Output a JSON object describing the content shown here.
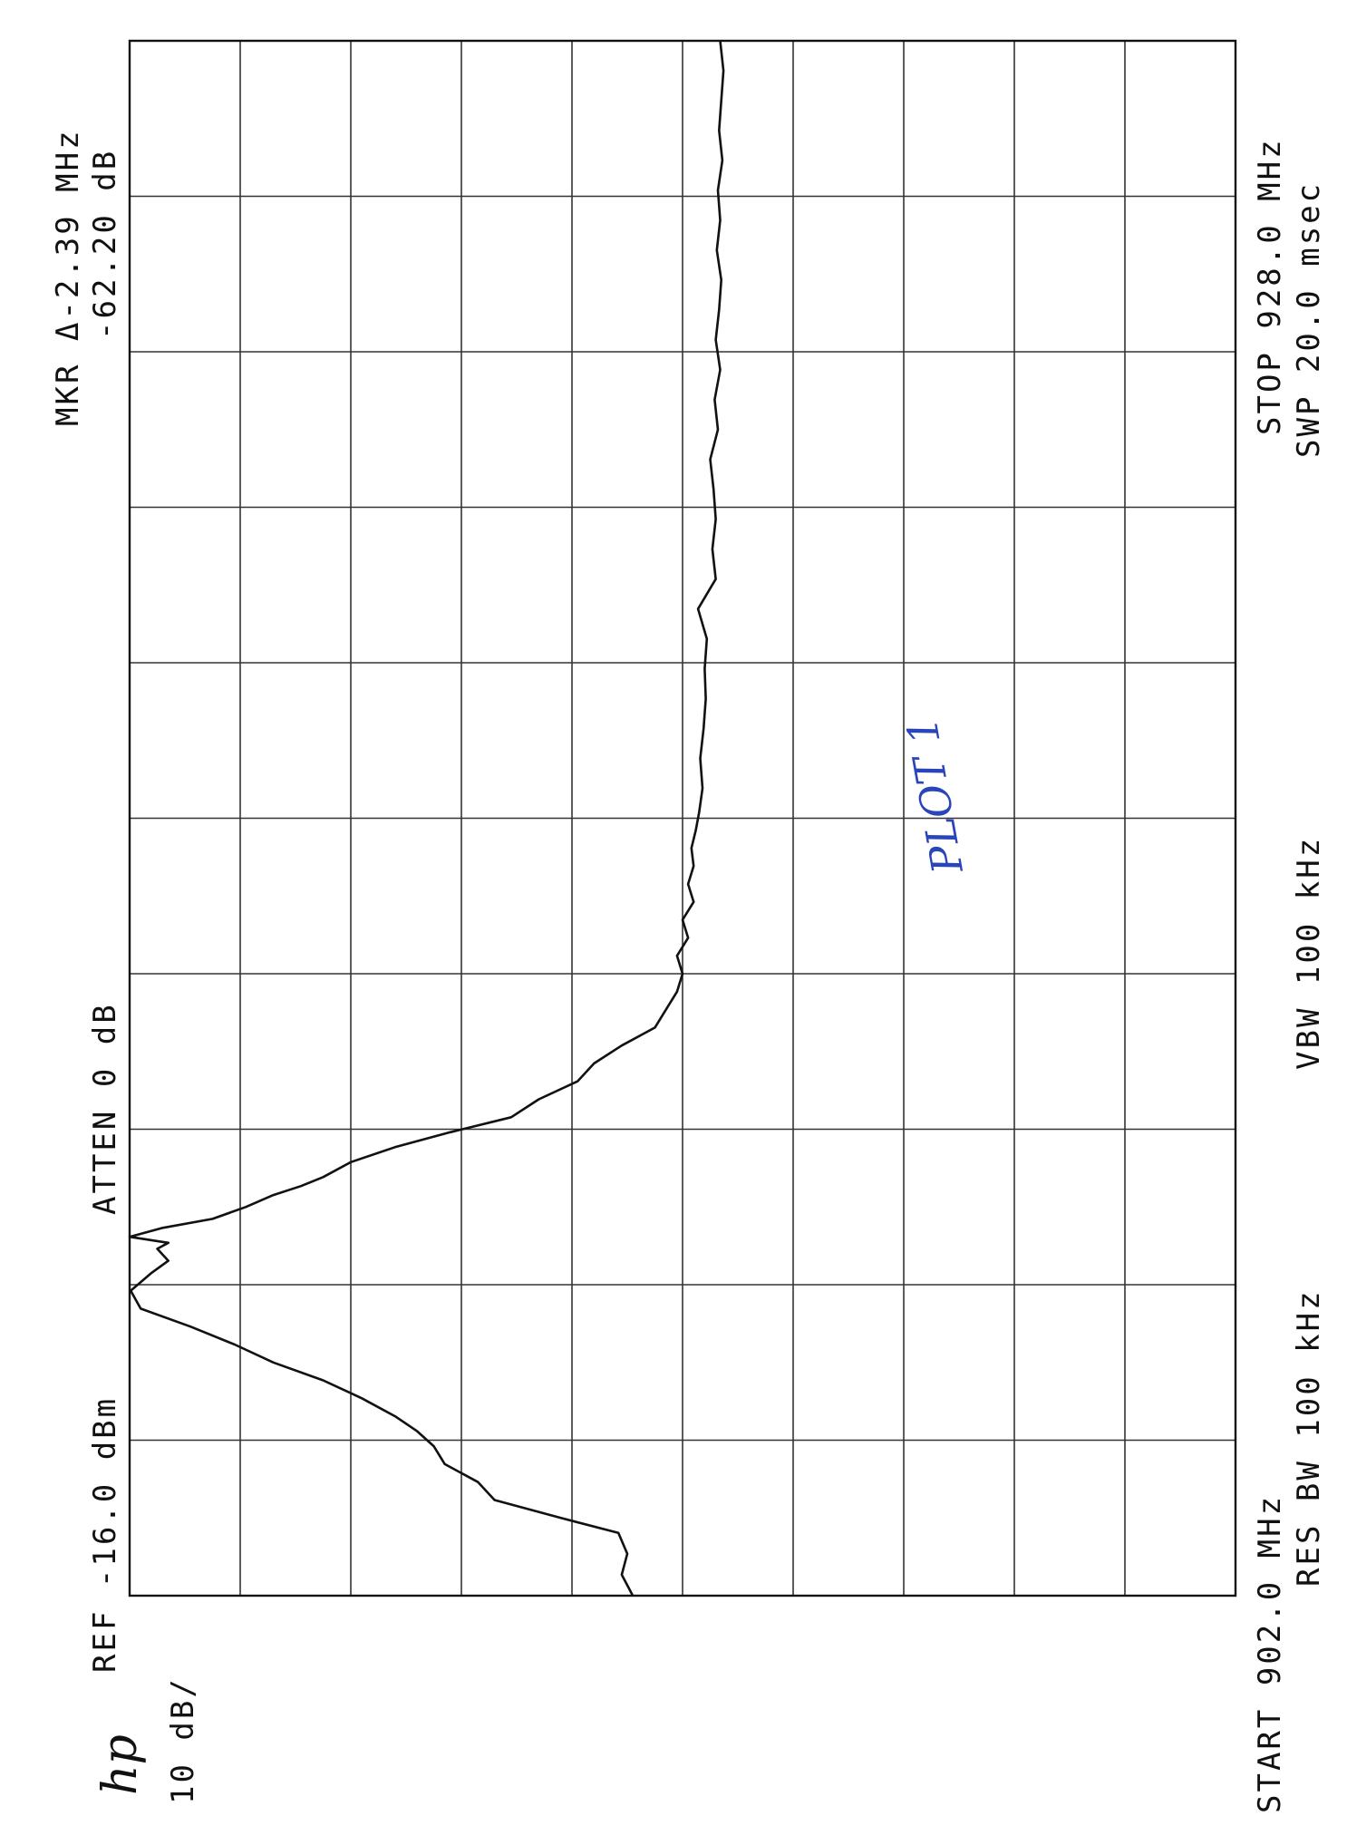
{
  "annotations": {
    "logo": "hp",
    "scale": "10 dB/",
    "ref": "REF -16.0 dBm",
    "atten": "ATTEN 0 dB",
    "handwritten_note": "PLOT 1",
    "marker_delta": "MKR Δ-2.39 MHz",
    "marker_level": "-62.20 dB",
    "start": "START 902.0 MHz",
    "res_bw": "RES BW 100 kHz",
    "vbw": "VBW 100 kHz",
    "stop": "STOP 928.0 MHz",
    "sweep": "SWP 20.0 msec"
  },
  "chart_data": {
    "type": "line",
    "title": "",
    "xlabel": "",
    "ylabel": "",
    "x_unit": "MHz",
    "y_unit": "dBm",
    "xlim": [
      902.0,
      928.0
    ],
    "ylim": [
      -116.0,
      -16.0
    ],
    "grid": true,
    "grid_divisions": {
      "x": 10,
      "y": 10
    },
    "series": [
      {
        "name": "",
        "color": "#111111",
        "x": [
          902.0,
          902.35,
          902.7,
          903.05,
          903.3,
          903.6,
          903.9,
          904.2,
          904.5,
          904.75,
          905.0,
          905.3,
          905.6,
          905.9,
          906.2,
          906.5,
          906.8,
          907.1,
          907.4,
          907.6,
          907.8,
          907.9,
          908.0,
          908.15,
          908.3,
          908.5,
          908.7,
          908.85,
          909.0,
          909.25,
          909.5,
          909.75,
          910.0,
          910.3,
          910.6,
          910.9,
          911.2,
          911.5,
          911.8,
          912.1,
          912.4,
          912.7,
          913.0,
          913.3,
          913.6,
          913.9,
          914.2,
          914.5,
          914.8,
          915.1,
          915.5,
          916.0,
          916.5,
          917.0,
          917.5,
          918.0,
          918.5,
          919.0,
          919.5,
          920.0,
          920.5,
          921.0,
          921.5,
          922.0,
          922.5,
          923.0,
          923.5,
          924.0,
          924.5,
          925.0,
          925.5,
          926.0,
          926.5,
          927.0,
          927.5,
          928.0
        ],
        "values": [
          -61.5,
          -60.5,
          -61.0,
          -60.2,
          -55.0,
          -49.0,
          -47.5,
          -44.5,
          -43.5,
          -42.0,
          -40.0,
          -37.0,
          -33.5,
          -29.0,
          -25.5,
          -21.5,
          -17.0,
          -16.1,
          -18.0,
          -19.5,
          -18.5,
          -19.5,
          -16.0,
          -19.0,
          -23.5,
          -26.5,
          -29.0,
          -31.5,
          -33.5,
          -36.0,
          -40.0,
          -45.0,
          -50.5,
          -53.0,
          -56.5,
          -58.0,
          -60.5,
          -63.5,
          -64.5,
          -65.5,
          -66.0,
          -65.5,
          -66.5,
          -66.0,
          -67.0,
          -66.5,
          -67.0,
          -66.8,
          -67.2,
          -67.5,
          -67.8,
          -67.6,
          -67.9,
          -68.1,
          -68.0,
          -68.2,
          -67.4,
          -69.0,
          -68.7,
          -69.0,
          -68.8,
          -68.5,
          -69.2,
          -68.9,
          -69.4,
          -69.0,
          -69.3,
          -69.5,
          -69.1,
          -69.4,
          -69.2,
          -69.6,
          -69.3,
          -69.5,
          -69.7,
          -69.4
        ]
      }
    ]
  }
}
